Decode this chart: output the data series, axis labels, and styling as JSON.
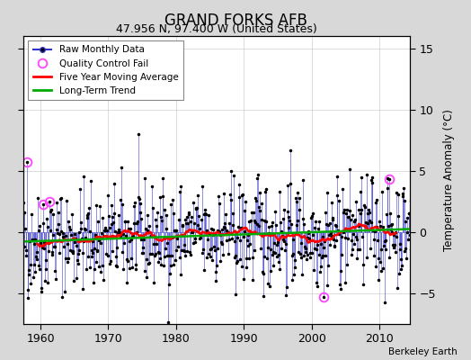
{
  "title": "GRAND FORKS AFB",
  "subtitle": "47.956 N, 97.400 W (United States)",
  "ylabel": "Temperature Anomaly (°C)",
  "credit": "Berkeley Earth",
  "year_start": 1957,
  "year_end": 2014,
  "ylim": [
    -7.5,
    16
  ],
  "yticks": [
    -5,
    0,
    5,
    10,
    15
  ],
  "xticks": [
    1960,
    1970,
    1980,
    1990,
    2000,
    2010
  ],
  "bg_color": "#d8d8d8",
  "plot_bg_color": "#ffffff",
  "raw_color": "#3333cc",
  "dot_color": "#000000",
  "mavg_color": "#ff0000",
  "trend_color": "#00aa00",
  "qc_color": "#ff44ff",
  "seed": 42,
  "qc_times": [
    1958.0,
    1960.4,
    1961.3,
    2001.8,
    2011.5
  ],
  "qc_vals": [
    5.7,
    2.3,
    2.5,
    -5.3,
    4.3
  ],
  "trend_slope": 0.018,
  "trend_intercept": -0.28,
  "noise_std": 2.8
}
